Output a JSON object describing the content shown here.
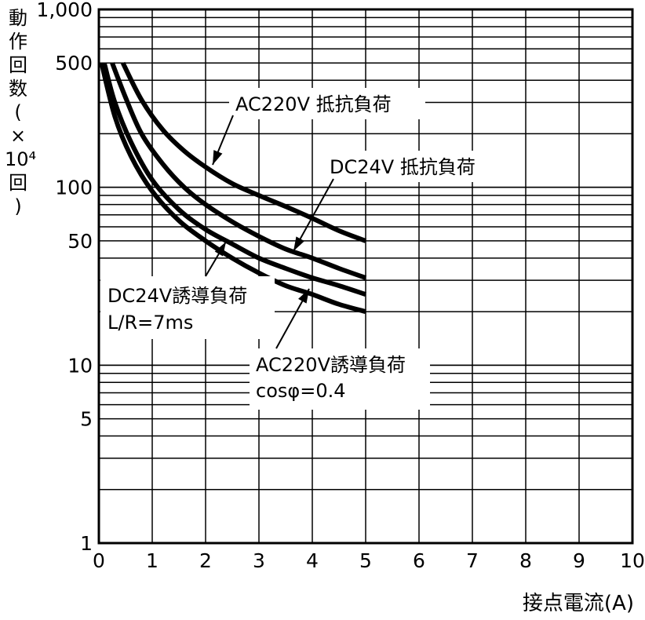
{
  "chart_data": {
    "type": "line",
    "xlabel": "接点電流(A)",
    "ylabel_chars": [
      "動",
      "作",
      "回",
      "数",
      "(",
      "×",
      "10⁴",
      "回",
      ")"
    ],
    "xlim": [
      0,
      10
    ],
    "ylim": [
      1,
      1000
    ],
    "yscale": "log",
    "grid": true,
    "x_ticks": [
      "0",
      "1",
      "2",
      "3",
      "4",
      "5",
      "6",
      "7",
      "8",
      "9",
      "10"
    ],
    "y_ticks": [
      {
        "value": 1,
        "label": "1"
      },
      {
        "value": 5,
        "label": "5"
      },
      {
        "value": 10,
        "label": "10"
      },
      {
        "value": 50,
        "label": "50"
      },
      {
        "value": 100,
        "label": "100"
      },
      {
        "value": 500,
        "label": "500"
      },
      {
        "value": 1000,
        "label": "1,000"
      }
    ],
    "series": [
      {
        "name": "AC220V 抵抗負荷",
        "x": [
          0.45,
          0.8,
          1.2,
          1.6,
          2,
          2.5,
          3,
          3.5,
          4,
          4.5,
          5
        ],
        "y": [
          500,
          310,
          210,
          160,
          130,
          105,
          90,
          78,
          67,
          57,
          50
        ]
      },
      {
        "name": "DC24V 抵抗負荷",
        "x": [
          0.25,
          0.5,
          0.8,
          1.2,
          1.6,
          2,
          2.5,
          3,
          3.5,
          4,
          4.5,
          5
        ],
        "y": [
          500,
          320,
          200,
          135,
          100,
          80,
          64,
          53,
          45,
          40,
          35,
          31
        ]
      },
      {
        "name": "DC24V誘導負荷 L/R=7ms",
        "x": [
          0.1,
          0.3,
          0.6,
          1,
          1.5,
          2,
          2.5,
          3,
          3.5,
          4,
          4.5,
          5
        ],
        "y": [
          500,
          300,
          180,
          110,
          75,
          58,
          48,
          40,
          35,
          31,
          28,
          25
        ]
      },
      {
        "name": "AC220V誘導負荷 cosφ=0.4",
        "x": [
          0.05,
          0.3,
          0.6,
          1,
          1.5,
          2,
          2.5,
          3,
          3.5,
          4,
          4.5,
          5
        ],
        "y": [
          500,
          250,
          150,
          95,
          65,
          50,
          40,
          33,
          28,
          25,
          22,
          20
        ]
      }
    ],
    "annotations": [
      {
        "text": "AC220V 抵抗負荷",
        "series": 0
      },
      {
        "text": "DC24V 抵抗負荷",
        "series": 1
      },
      {
        "lines": [
          "DC24V誘導負荷",
          "L/R=7ms"
        ],
        "series": 2
      },
      {
        "lines": [
          "AC220V誘導負荷",
          "cosφ=0.4"
        ],
        "series": 3
      }
    ]
  }
}
